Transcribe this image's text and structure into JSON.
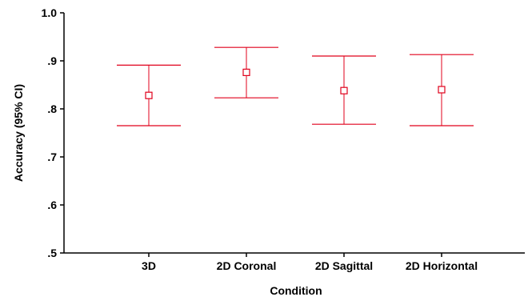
{
  "chart_data": {
    "type": "errorbar",
    "xlabel": "Condition",
    "ylabel": "Accuracy (95% CI)",
    "categories": [
      "3D",
      "2D Coronal",
      "2D Sagittal",
      "2D Horizontal"
    ],
    "series": [
      {
        "means": [
          0.828,
          0.876,
          0.838,
          0.84
        ],
        "ci_lower": [
          0.765,
          0.823,
          0.768,
          0.765
        ],
        "ci_upper": [
          0.891,
          0.928,
          0.91,
          0.913
        ]
      }
    ],
    "ylim": [
      0.5,
      1.0
    ],
    "yticks": [
      0.5,
      0.6,
      0.7,
      0.8,
      0.9,
      1.0
    ],
    "ytick_labels": [
      ".5",
      ".6",
      ".7",
      ".8",
      ".9",
      "1.0"
    ],
    "grid": false,
    "legend": "none",
    "color": "#e0001b"
  }
}
